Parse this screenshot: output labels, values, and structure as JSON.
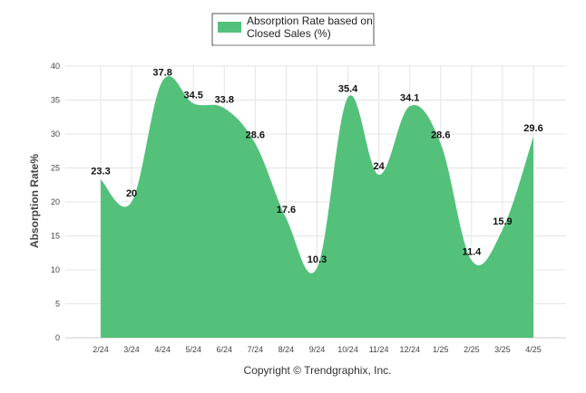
{
  "colors": {
    "area": "#54c17b",
    "grid": "#e4e4e4",
    "axis": "#cccccc"
  },
  "legend": {
    "line1": "Absorption Rate based on",
    "line2": "Closed Sales (%)"
  },
  "copyright": "Copyright © Trendgraphix, Inc.",
  "chart_data": {
    "type": "area",
    "categories": [
      "2/24",
      "3/24",
      "4/24",
      "5/24",
      "6/24",
      "7/24",
      "8/24",
      "9/24",
      "10/24",
      "11/24",
      "12/24",
      "1/25",
      "2/25",
      "3/25",
      "4/25"
    ],
    "series": [
      {
        "name": "Absorption Rate based on Closed Sales (%)",
        "values": [
          23.3,
          20,
          37.8,
          34.5,
          33.8,
          28.6,
          17.6,
          10.3,
          35.4,
          24,
          34.1,
          28.6,
          11.4,
          15.9,
          29.6
        ],
        "labels": [
          "23.3",
          "20",
          "37.8",
          "34.5",
          "33.8",
          "28.6",
          "17.6",
          "10.3",
          "35.4",
          "24",
          "34.1",
          "28.6",
          "11.4",
          "15.9",
          "29.6"
        ]
      }
    ],
    "ylabel": "Absorption Rate%",
    "ylim": [
      0,
      40
    ],
    "yticks": [
      "0",
      "5",
      "10",
      "15",
      "20",
      "25",
      "30",
      "35",
      "40"
    ],
    "grid": true,
    "legend_position": "top-center"
  }
}
